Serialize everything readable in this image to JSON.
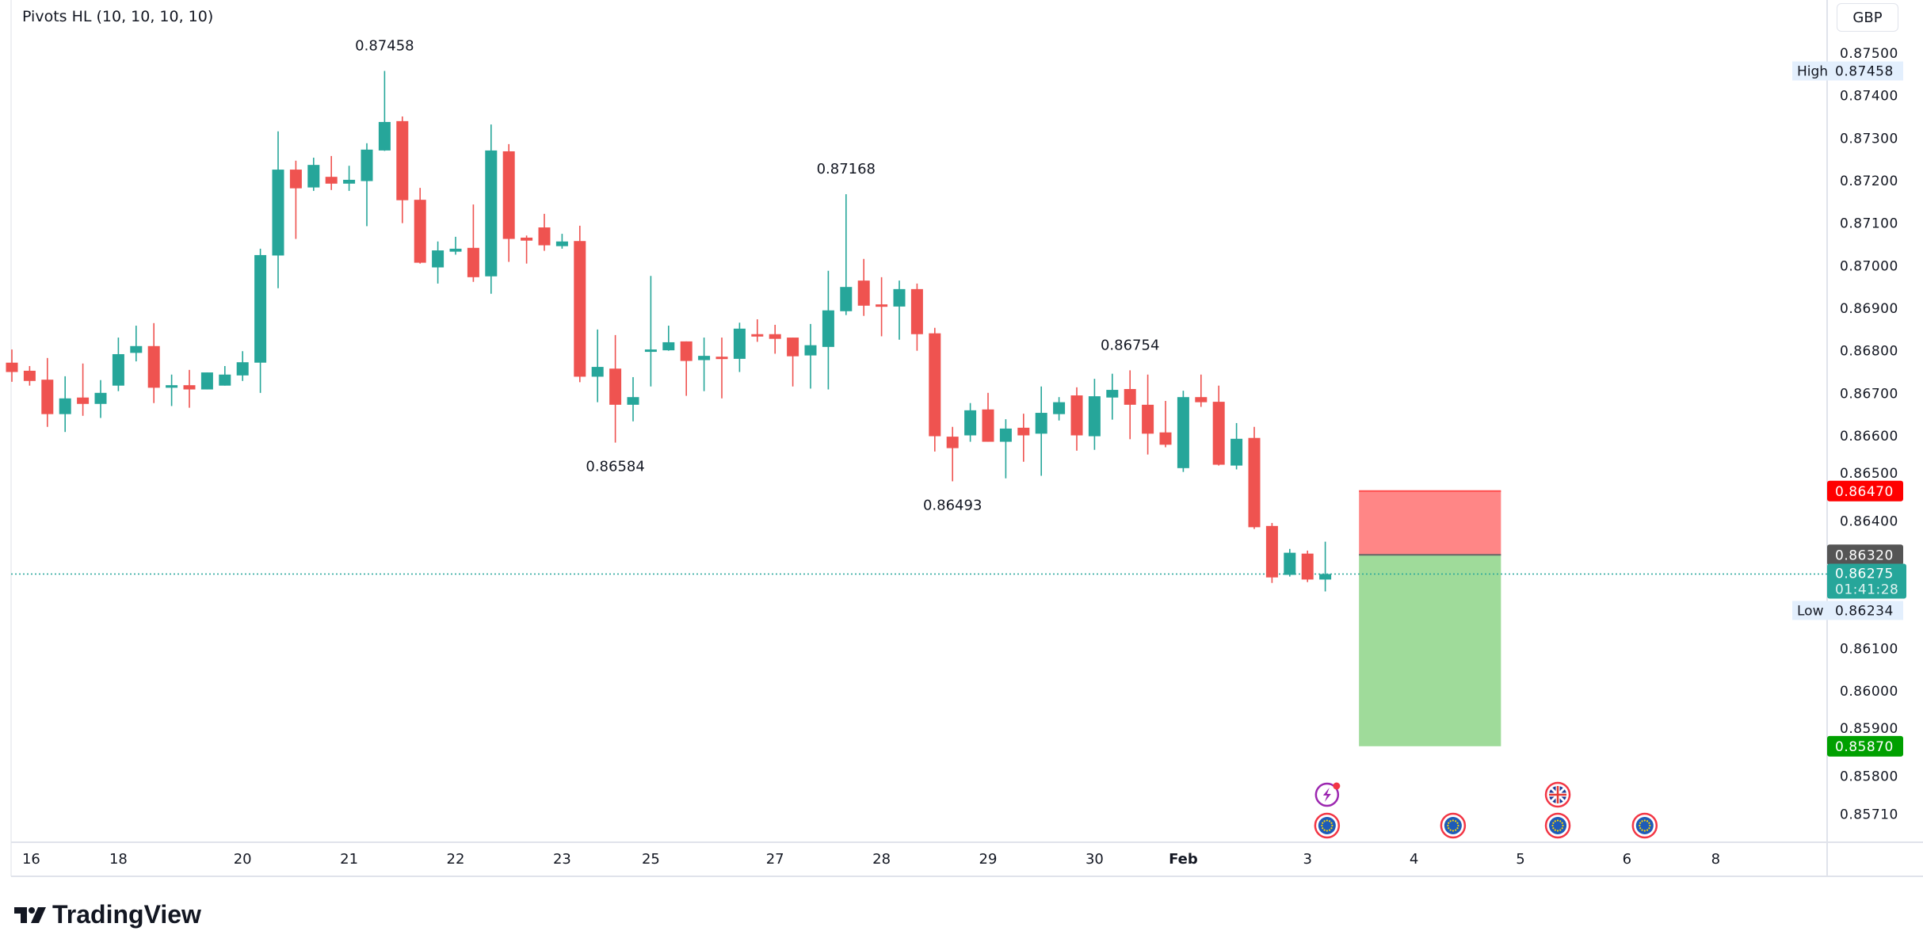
{
  "indicator": {
    "label": "Pivots HL (10, 10, 10, 10)"
  },
  "currency": "GBP",
  "branding": {
    "logo_text": "TradingView"
  },
  "colors": {
    "up": "#26a69a",
    "down": "#ef5350",
    "stop_zone": "#ff8080",
    "target_zone": "#9fdb9a",
    "stop_badge": "#ff0000",
    "target_badge": "#00a000",
    "entry_badge": "#555555",
    "last_badge": "#26a69a",
    "hl_badge": "#e3effd"
  },
  "price_axis": {
    "ticks": [
      "0.87500",
      "0.87400",
      "0.87300",
      "0.87200",
      "0.87100",
      "0.87000",
      "0.86900",
      "0.86800",
      "0.86700",
      "0.86600",
      "0.86500",
      "0.86400",
      "0.86100",
      "0.86000",
      "0.85900",
      "0.85800",
      "0.85710"
    ],
    "high": {
      "label": "High",
      "value": "0.87458"
    },
    "low": {
      "label": "Low",
      "value": "0.86234"
    },
    "stop": "0.86470",
    "entry": "0.86320",
    "last": {
      "value": "0.86275",
      "countdown": "01:41:28"
    },
    "target": "0.85870"
  },
  "time_axis": {
    "labels": [
      {
        "text": "16",
        "bar": 1
      },
      {
        "text": "18",
        "bar": 6
      },
      {
        "text": "20",
        "bar": 13
      },
      {
        "text": "21",
        "bar": 19
      },
      {
        "text": "22",
        "bar": 25
      },
      {
        "text": "23",
        "bar": 31
      },
      {
        "text": "25",
        "bar": 36
      },
      {
        "text": "27",
        "bar": 43
      },
      {
        "text": "28",
        "bar": 49
      },
      {
        "text": "29",
        "bar": 55
      },
      {
        "text": "30",
        "bar": 61
      },
      {
        "text": "Feb",
        "bar": 66
      },
      {
        "text": "3",
        "bar": 73
      },
      {
        "text": "4",
        "bar": 79
      },
      {
        "text": "5",
        "bar": 85
      },
      {
        "text": "6",
        "bar": 91
      },
      {
        "text": "8",
        "bar": 96
      }
    ]
  },
  "pivots": [
    {
      "text": "0.87458",
      "bar": 21,
      "price": 0.87458,
      "pos": "above"
    },
    {
      "text": "0.87168",
      "bar": 47,
      "price": 0.87168,
      "pos": "above"
    },
    {
      "text": "0.86754",
      "bar": 63,
      "price": 0.86754,
      "pos": "above"
    },
    {
      "text": "0.86584",
      "bar": 34,
      "price": 0.86584,
      "pos": "below"
    },
    {
      "text": "0.86493",
      "bar": 53,
      "price": 0.86493,
      "pos": "below"
    }
  ],
  "events": [
    {
      "type": "lightning",
      "bar": 74.1,
      "row": 0
    },
    {
      "type": "eu-flag",
      "bar": 74.1,
      "row": 1
    },
    {
      "type": "eu-flag",
      "bar": 81.2,
      "row": 1
    },
    {
      "type": "uk-flag",
      "bar": 87.1,
      "row": 0
    },
    {
      "type": "eu-flag",
      "bar": 87.1,
      "row": 1
    },
    {
      "type": "eu-flag",
      "bar": 92.0,
      "row": 1
    }
  ],
  "position_tool": {
    "start_bar": 75.9,
    "end_bar": 83.9,
    "stop": 0.8647,
    "entry": 0.8632,
    "target": 0.8587
  },
  "chart_data": {
    "type": "candlestick",
    "symbol_currency": "GBP",
    "ylim": [
      0.8571,
      0.875
    ],
    "last_price": 0.86275,
    "ohlc": [
      [
        0.86772,
        0.86803,
        0.86727,
        0.8675
      ],
      [
        0.86753,
        0.86764,
        0.86718,
        0.86729
      ],
      [
        0.86732,
        0.86783,
        0.86621,
        0.86651
      ],
      [
        0.86651,
        0.8674,
        0.86609,
        0.86688
      ],
      [
        0.8669,
        0.8677,
        0.86647,
        0.86675
      ],
      [
        0.86675,
        0.86731,
        0.86642,
        0.86701
      ],
      [
        0.86718,
        0.86831,
        0.86705,
        0.86792
      ],
      [
        0.86795,
        0.86859,
        0.86775,
        0.86811
      ],
      [
        0.86811,
        0.86865,
        0.86677,
        0.86713
      ],
      [
        0.86713,
        0.86744,
        0.8667,
        0.86719
      ],
      [
        0.86719,
        0.86755,
        0.86666,
        0.86709
      ],
      [
        0.86709,
        0.86749,
        0.86709,
        0.86749
      ],
      [
        0.86718,
        0.86764,
        0.86718,
        0.86744
      ],
      [
        0.86742,
        0.86799,
        0.86729,
        0.86773
      ],
      [
        0.86772,
        0.8704,
        0.86701,
        0.87025
      ],
      [
        0.87024,
        0.87316,
        0.86947,
        0.87226
      ],
      [
        0.87226,
        0.87247,
        0.87063,
        0.87182
      ],
      [
        0.87184,
        0.87254,
        0.87176,
        0.87237
      ],
      [
        0.87209,
        0.87258,
        0.87178,
        0.87193
      ],
      [
        0.87193,
        0.87235,
        0.87176,
        0.87202
      ],
      [
        0.87199,
        0.87288,
        0.87093,
        0.87273
      ],
      [
        0.87271,
        0.87458,
        0.8727,
        0.87338
      ],
      [
        0.8734,
        0.87351,
        0.871,
        0.87154
      ],
      [
        0.87155,
        0.87183,
        0.87005,
        0.87007
      ],
      [
        0.86996,
        0.87057,
        0.86958,
        0.87036
      ],
      [
        0.87033,
        0.87068,
        0.87026,
        0.8704
      ],
      [
        0.87042,
        0.87144,
        0.86962,
        0.86973
      ],
      [
        0.86975,
        0.87332,
        0.86934,
        0.87271
      ],
      [
        0.87269,
        0.87286,
        0.87009,
        0.87063
      ],
      [
        0.87066,
        0.87071,
        0.87005,
        0.87059
      ],
      [
        0.8709,
        0.87122,
        0.87035,
        0.87048
      ],
      [
        0.87046,
        0.87075,
        0.8704,
        0.87057
      ],
      [
        0.87058,
        0.87094,
        0.86726,
        0.86739
      ],
      [
        0.86739,
        0.8685,
        0.86679,
        0.86762
      ],
      [
        0.86758,
        0.86837,
        0.86584,
        0.86673
      ],
      [
        0.86673,
        0.86738,
        0.86634,
        0.86691
      ],
      [
        0.868,
        0.86976,
        0.86716,
        0.86803
      ],
      [
        0.86801,
        0.86859,
        0.868,
        0.8682
      ],
      [
        0.86822,
        0.86822,
        0.86694,
        0.86776
      ],
      [
        0.86778,
        0.86831,
        0.86705,
        0.86788
      ],
      [
        0.86786,
        0.86831,
        0.86688,
        0.86785
      ],
      [
        0.86781,
        0.86866,
        0.8675,
        0.86852
      ],
      [
        0.86839,
        0.86874,
        0.86821,
        0.86836
      ],
      [
        0.86839,
        0.86861,
        0.86793,
        0.86828
      ],
      [
        0.86831,
        0.86831,
        0.86716,
        0.86787
      ],
      [
        0.86789,
        0.86863,
        0.86711,
        0.86813
      ],
      [
        0.86809,
        0.86988,
        0.86709,
        0.86895
      ],
      [
        0.86893,
        0.87168,
        0.86884,
        0.8695
      ],
      [
        0.86965,
        0.87016,
        0.86882,
        0.86906
      ],
      [
        0.86909,
        0.86973,
        0.86834,
        0.86904
      ],
      [
        0.86904,
        0.86965,
        0.86826,
        0.86945
      ],
      [
        0.86945,
        0.86958,
        0.868,
        0.86839
      ],
      [
        0.86841,
        0.86854,
        0.86563,
        0.86599
      ],
      [
        0.86598,
        0.86621,
        0.86493,
        0.86571
      ],
      [
        0.86601,
        0.86677,
        0.86586,
        0.8666
      ],
      [
        0.86662,
        0.86701,
        0.86586,
        0.86586
      ],
      [
        0.86586,
        0.86639,
        0.865,
        0.86617
      ],
      [
        0.86619,
        0.86652,
        0.86539,
        0.86601
      ],
      [
        0.86605,
        0.86716,
        0.86506,
        0.86654
      ],
      [
        0.86651,
        0.86691,
        0.86636,
        0.86679
      ],
      [
        0.86695,
        0.86714,
        0.86565,
        0.86601
      ],
      [
        0.86599,
        0.86734,
        0.86567,
        0.86693
      ],
      [
        0.8669,
        0.86746,
        0.86638,
        0.86708
      ],
      [
        0.8671,
        0.86754,
        0.86592,
        0.86673
      ],
      [
        0.86673,
        0.86744,
        0.86556,
        0.86605
      ],
      [
        0.86608,
        0.86682,
        0.86573,
        0.86579
      ],
      [
        0.86524,
        0.86706,
        0.86515,
        0.86691
      ],
      [
        0.86691,
        0.86744,
        0.86668,
        0.86679
      ],
      [
        0.8668,
        0.86718,
        0.8653,
        0.86532
      ],
      [
        0.8653,
        0.8663,
        0.86521,
        0.86593
      ],
      [
        0.86595,
        0.86621,
        0.86381,
        0.86385
      ],
      [
        0.86388,
        0.86395,
        0.86254,
        0.86267
      ],
      [
        0.86273,
        0.86334,
        0.86269,
        0.86325
      ],
      [
        0.86323,
        0.8633,
        0.86256,
        0.86262
      ],
      [
        0.86262,
        0.86351,
        0.86234,
        0.86275
      ]
    ]
  }
}
